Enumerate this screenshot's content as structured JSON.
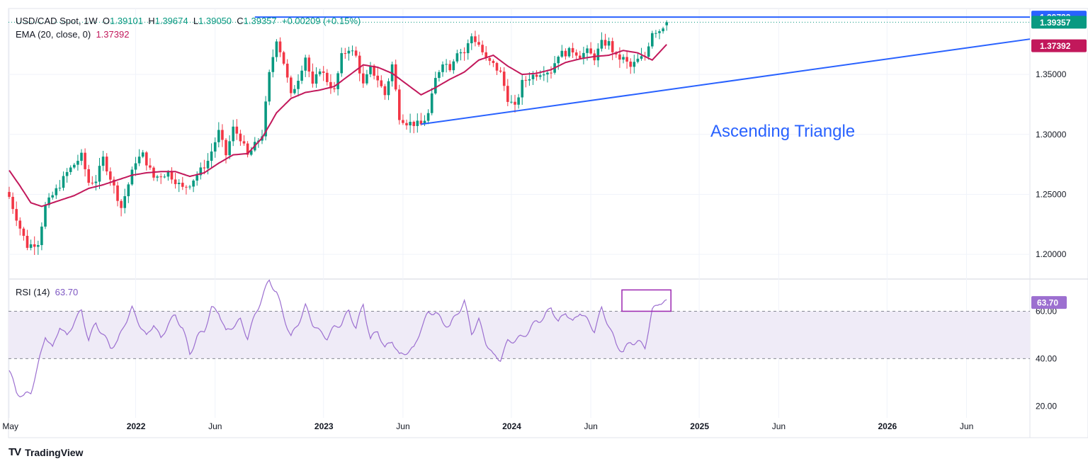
{
  "legend": {
    "symbol": "USD/CAD Spot, 1W",
    "o_label": "O",
    "o": "1.39101",
    "h_label": "H",
    "h": "1.39674",
    "l_label": "L",
    "l": "1.39050",
    "c_label": "C",
    "c": "1.39357",
    "change": "+0.00209 (+0.15%)",
    "ema_label": "EMA (20, close, 0)",
    "ema_value": "1.37392",
    "rsi_label": "RSI (14)",
    "rsi_value": "63.70"
  },
  "annotation": "Ascending Triangle",
  "footer": {
    "logo": "TV",
    "brand": "TradingView"
  },
  "colors": {
    "up": "#089981",
    "down": "#f23645",
    "ema": "#c2185b",
    "rsi": "#9c6fd0",
    "trend": "#2962ff",
    "band": "#efebf7",
    "grid": "#f0f3fa"
  },
  "chart_data": [
    {
      "type": "candlestick",
      "title": "USD/CAD Spot, 1W",
      "ylim": [
        1.18,
        1.405
      ],
      "y_ticks": [
        "1.20000",
        "1.25000",
        "1.30000",
        "1.35000"
      ],
      "y_tick_values": [
        1.2,
        1.25,
        1.3,
        1.35
      ],
      "x_ticks": [
        "May",
        "2022",
        "Jun",
        "2023",
        "Jun",
        "2024",
        "Jun",
        "2025",
        "Jun",
        "2026",
        "Jun"
      ],
      "x_tick_weeks": [
        0,
        35,
        57,
        87,
        109,
        139,
        161,
        191,
        213,
        243,
        265
      ],
      "price_tags": [
        {
          "label": "1.39783",
          "value": 1.39783,
          "color": "#2962ff"
        },
        {
          "label": "1.39357",
          "value": 1.39357,
          "color": "#089981"
        },
        {
          "label": "1.37392",
          "value": 1.37392,
          "color": "#c2185b"
        }
      ],
      "last_close": 1.39357,
      "horizontal_resistance": {
        "value": 1.39783,
        "from_week": 68,
        "to_week": 282
      },
      "ascending_trendline": {
        "from_week": 114,
        "from_value": 1.3085,
        "to_week": 282,
        "to_value": 1.3795
      },
      "ema_anchors": [
        [
          0,
          1.27
        ],
        [
          3,
          1.257
        ],
        [
          6,
          1.243
        ],
        [
          9,
          1.24
        ],
        [
          14,
          1.245
        ],
        [
          18,
          1.249
        ],
        [
          22,
          1.255
        ],
        [
          26,
          1.258
        ],
        [
          30,
          1.262
        ],
        [
          34,
          1.266
        ],
        [
          38,
          1.268
        ],
        [
          42,
          1.269
        ],
        [
          46,
          1.269
        ],
        [
          50,
          1.265
        ],
        [
          54,
          1.268
        ],
        [
          58,
          1.276
        ],
        [
          62,
          1.283
        ],
        [
          66,
          1.284
        ],
        [
          70,
          1.297
        ],
        [
          74,
          1.318
        ],
        [
          78,
          1.33
        ],
        [
          82,
          1.335
        ],
        [
          86,
          1.337
        ],
        [
          90,
          1.34
        ],
        [
          94,
          1.349
        ],
        [
          98,
          1.358
        ],
        [
          102,
          1.356
        ],
        [
          106,
          1.351
        ],
        [
          110,
          1.342
        ],
        [
          114,
          1.333
        ],
        [
          118,
          1.339
        ],
        [
          122,
          1.346
        ],
        [
          126,
          1.352
        ],
        [
          130,
          1.362
        ],
        [
          134,
          1.366
        ],
        [
          138,
          1.357
        ],
        [
          142,
          1.35
        ],
        [
          146,
          1.351
        ],
        [
          150,
          1.354
        ],
        [
          154,
          1.36
        ],
        [
          158,
          1.363
        ],
        [
          162,
          1.365
        ],
        [
          166,
          1.366
        ],
        [
          170,
          1.37
        ],
        [
          174,
          1.368
        ],
        [
          178,
          1.362
        ],
        [
          182,
          1.375
        ]
      ],
      "price_anchors": [
        [
          0,
          1.248
        ],
        [
          3,
          1.222
        ],
        [
          5,
          1.207
        ],
        [
          8,
          1.21
        ],
        [
          10,
          1.24
        ],
        [
          14,
          1.258
        ],
        [
          16,
          1.268
        ],
        [
          20,
          1.282
        ],
        [
          22,
          1.26
        ],
        [
          24,
          1.262
        ],
        [
          26,
          1.28
        ],
        [
          29,
          1.256
        ],
        [
          31,
          1.239
        ],
        [
          35,
          1.278
        ],
        [
          37,
          1.283
        ],
        [
          40,
          1.264
        ],
        [
          44,
          1.268
        ],
        [
          48,
          1.255
        ],
        [
          50,
          1.259
        ],
        [
          53,
          1.27
        ],
        [
          55,
          1.278
        ],
        [
          58,
          1.302
        ],
        [
          60,
          1.283
        ],
        [
          62,
          1.305
        ],
        [
          64,
          1.297
        ],
        [
          66,
          1.282
        ],
        [
          70,
          1.3
        ],
        [
          72,
          1.35
        ],
        [
          74,
          1.38
        ],
        [
          76,
          1.36
        ],
        [
          78,
          1.332
        ],
        [
          80,
          1.347
        ],
        [
          82,
          1.365
        ],
        [
          84,
          1.34
        ],
        [
          86,
          1.355
        ],
        [
          88,
          1.345
        ],
        [
          90,
          1.336
        ],
        [
          92,
          1.365
        ],
        [
          94,
          1.372
        ],
        [
          96,
          1.365
        ],
        [
          98,
          1.341
        ],
        [
          100,
          1.355
        ],
        [
          102,
          1.346
        ],
        [
          104,
          1.333
        ],
        [
          106,
          1.358
        ],
        [
          108,
          1.315
        ],
        [
          110,
          1.31
        ],
        [
          114,
          1.308
        ],
        [
          116,
          1.317
        ],
        [
          118,
          1.346
        ],
        [
          120,
          1.361
        ],
        [
          122,
          1.356
        ],
        [
          124,
          1.37
        ],
        [
          126,
          1.368
        ],
        [
          128,
          1.382
        ],
        [
          130,
          1.375
        ],
        [
          132,
          1.362
        ],
        [
          134,
          1.358
        ],
        [
          136,
          1.351
        ],
        [
          138,
          1.33
        ],
        [
          140,
          1.322
        ],
        [
          142,
          1.343
        ],
        [
          144,
          1.348
        ],
        [
          148,
          1.353
        ],
        [
          150,
          1.353
        ],
        [
          152,
          1.367
        ],
        [
          154,
          1.368
        ],
        [
          156,
          1.37
        ],
        [
          158,
          1.366
        ],
        [
          160,
          1.369
        ],
        [
          162,
          1.364
        ],
        [
          164,
          1.376
        ],
        [
          166,
          1.376
        ],
        [
          168,
          1.364
        ],
        [
          170,
          1.363
        ],
        [
          172,
          1.356
        ],
        [
          174,
          1.362
        ],
        [
          176,
          1.365
        ],
        [
          178,
          1.386
        ],
        [
          180,
          1.387
        ],
        [
          182,
          1.3936
        ]
      ]
    },
    {
      "type": "line",
      "title": "RSI (14)",
      "ylim": [
        15,
        73
      ],
      "y_ticks": [
        "20.00",
        "40.00",
        "60.00"
      ],
      "y_tick_values": [
        20,
        40,
        60
      ],
      "band": [
        40,
        60
      ],
      "last_label": "63.70",
      "last_value": 63.7,
      "highlight_box": {
        "from_week": 170,
        "to_week": 182,
        "low": 60,
        "high": 69
      },
      "rsi_anchors": [
        [
          0,
          35
        ],
        [
          2,
          26
        ],
        [
          4,
          24
        ],
        [
          6,
          26
        ],
        [
          8,
          37
        ],
        [
          10,
          50
        ],
        [
          12,
          44
        ],
        [
          14,
          54
        ],
        [
          16,
          49
        ],
        [
          18,
          56
        ],
        [
          20,
          60
        ],
        [
          22,
          48
        ],
        [
          24,
          55
        ],
        [
          26,
          50
        ],
        [
          28,
          45
        ],
        [
          30,
          47
        ],
        [
          32,
          55
        ],
        [
          34,
          61
        ],
        [
          36,
          55
        ],
        [
          38,
          49
        ],
        [
          40,
          55
        ],
        [
          42,
          48
        ],
        [
          44,
          55
        ],
        [
          46,
          58
        ],
        [
          48,
          53
        ],
        [
          50,
          42
        ],
        [
          52,
          49
        ],
        [
          54,
          52
        ],
        [
          56,
          61
        ],
        [
          58,
          60
        ],
        [
          60,
          51
        ],
        [
          62,
          54
        ],
        [
          64,
          56
        ],
        [
          66,
          49
        ],
        [
          68,
          58
        ],
        [
          70,
          66
        ],
        [
          72,
          73
        ],
        [
          74,
          68
        ],
        [
          76,
          58
        ],
        [
          78,
          49
        ],
        [
          80,
          55
        ],
        [
          82,
          62
        ],
        [
          84,
          55
        ],
        [
          86,
          51
        ],
        [
          88,
          49
        ],
        [
          90,
          53
        ],
        [
          92,
          55
        ],
        [
          94,
          60
        ],
        [
          96,
          53
        ],
        [
          98,
          63
        ],
        [
          100,
          48
        ],
        [
          102,
          52
        ],
        [
          104,
          44
        ],
        [
          106,
          48
        ],
        [
          108,
          41
        ],
        [
          110,
          43
        ],
        [
          112,
          44
        ],
        [
          114,
          53
        ],
        [
          116,
          59
        ],
        [
          118,
          60
        ],
        [
          120,
          55
        ],
        [
          122,
          54
        ],
        [
          124,
          59
        ],
        [
          126,
          64
        ],
        [
          128,
          51
        ],
        [
          130,
          56
        ],
        [
          132,
          47
        ],
        [
          134,
          41
        ],
        [
          136,
          40
        ],
        [
          138,
          47
        ],
        [
          140,
          48
        ],
        [
          142,
          49
        ],
        [
          144,
          52
        ],
        [
          146,
          56
        ],
        [
          148,
          57
        ],
        [
          150,
          62
        ],
        [
          152,
          55
        ],
        [
          154,
          60
        ],
        [
          156,
          55
        ],
        [
          158,
          60
        ],
        [
          160,
          56
        ],
        [
          162,
          52
        ],
        [
          164,
          61
        ],
        [
          166,
          54
        ],
        [
          168,
          46
        ],
        [
          170,
          43
        ],
        [
          172,
          47
        ],
        [
          174,
          47
        ],
        [
          176,
          45
        ],
        [
          178,
          60
        ],
        [
          180,
          64
        ],
        [
          182,
          63.7
        ]
      ]
    }
  ]
}
